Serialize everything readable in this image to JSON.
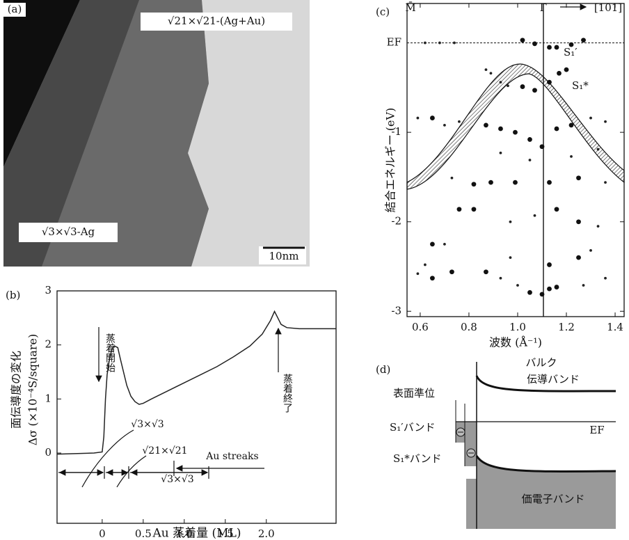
{
  "stm_image": {
    "panel_label": "(a)",
    "labels": [
      "√21×√21-(Ag+Au)",
      "√3×√3-Ag"
    ],
    "scale_bar": "10nm"
  },
  "chart_data": [
    {
      "type": "line",
      "panel_label": "(b)",
      "x_label": "Au 蒸着量 (ML)",
      "y_label": [
        "面伝導度の変化",
        "Δσ (×10⁻⁴S/square)"
      ],
      "xlim": [
        -0.55,
        2.85
      ],
      "xticks": [
        0,
        0.5,
        {
          "value": 1,
          "label": "1.0"
        },
        1.5,
        {
          "value": 2,
          "label": "2.0"
        }
      ],
      "ylim": [
        -1.3,
        3
      ],
      "yticks": [
        0,
        1,
        2,
        3
      ],
      "x": [
        -0.55,
        -0.3,
        -0.1,
        0,
        0.02,
        0.04,
        0.06,
        0.09,
        0.12,
        0.15,
        0.19,
        0.22,
        0.26,
        0.3,
        0.35,
        0.4,
        0.45,
        0.5,
        0.6,
        0.8,
        1.0,
        1.2,
        1.4,
        1.6,
        1.8,
        1.95,
        2.05,
        2.1,
        2.14,
        2.18,
        2.25,
        2.4,
        2.6,
        2.85
      ],
      "series": [
        {
          "color": "#222222",
          "values": [
            -0.02,
            -0.01,
            0,
            0.02,
            0.3,
            1.0,
            1.45,
            1.75,
            1.93,
            1.98,
            1.95,
            1.75,
            1.5,
            1.25,
            1.05,
            0.95,
            0.9,
            0.92,
            1.0,
            1.15,
            1.3,
            1.45,
            1.6,
            1.78,
            1.98,
            2.2,
            2.45,
            2.62,
            2.5,
            2.38,
            2.32,
            2.3,
            2.3,
            2.3
          ]
        }
      ],
      "annotations": [
        "蒸着開始",
        "蒸着終了",
        "√3×√3",
        "√21×√21",
        "Au streaks",
        "√3×√3"
      ]
    },
    {
      "type": "scatter",
      "panel_label": "(c)",
      "x_label": "波数 (Å⁻¹)",
      "y_label": "結合エネルギー (eV)",
      "top_labels": [
        "M̄",
        "Γ̄",
        "[101]"
      ],
      "annotations": [
        "S₁′",
        "S₁*"
      ],
      "xlim": [
        0.546,
        1.437
      ],
      "xticks": [
        0.6,
        0.8,
        {
          "value": 1,
          "label": "1.0"
        },
        1.2,
        1.4
      ],
      "ylim": [
        -3.06,
        0.44
      ],
      "yticks": [
        -3,
        -2,
        -1,
        {
          "value": 0,
          "label": "EF"
        }
      ],
      "series": [
        {
          "color": "#111111",
          "x": [
            1.02,
            1.07,
            1.13,
            1.16,
            1.22,
            1.27,
            1.02,
            1.07,
            1.13,
            1.17,
            1.2,
            0.65,
            0.87,
            0.93,
            0.99,
            1.05,
            1.1,
            1.16,
            1.22,
            0.82,
            0.89,
            0.99,
            1.13,
            1.25,
            0.76,
            0.82,
            1.16,
            1.25,
            0.65,
            0.73,
            0.87,
            1.13,
            1.25,
            0.65,
            1.05,
            1.1,
            1.13,
            1.16
          ],
          "values": [
            0.03,
            -0.01,
            -0.05,
            -0.05,
            -0.02,
            0.03,
            -0.49,
            -0.53,
            -0.44,
            -0.34,
            -0.3,
            -0.84,
            -0.92,
            -0.96,
            -1,
            -1.08,
            -1.16,
            -0.96,
            -0.92,
            -1.58,
            -1.56,
            -1.56,
            -1.56,
            -1.51,
            -1.86,
            -1.86,
            -1.86,
            -2,
            -2.25,
            -2.56,
            -2.56,
            -2.48,
            -2.4,
            -2.63,
            -2.79,
            -2.81,
            -2.75,
            -2.73
          ]
        },
        {
          "color": "#222222",
          "x": [
            0.62,
            0.68,
            0.74,
            0.87,
            0.89,
            0.93,
            0.96,
            0.59,
            0.7,
            0.76,
            1.3,
            1.36,
            0.93,
            1.05,
            1.22,
            1.33,
            0.73,
            1.36,
            0.97,
            1.07,
            1.33,
            0.7,
            0.62,
            0.97,
            1.3,
            0.59,
            0.93,
            1,
            1.27,
            1.36
          ],
          "values": [
            0,
            0,
            0,
            -0.3,
            -0.34,
            -0.44,
            -0.48,
            -0.84,
            -0.92,
            -0.88,
            -0.84,
            -0.88,
            -1.23,
            -1.31,
            -1.27,
            -1.19,
            -1.51,
            -1.56,
            -2,
            -1.93,
            -2.05,
            -2.25,
            -2.48,
            -2.4,
            -2.32,
            -2.58,
            -2.63,
            -2.71,
            -2.71,
            -2.63
          ]
        }
      ]
    }
  ],
  "band_diagram": {
    "panel_label": "(d)",
    "labels": [
      "バルク",
      "伝導バンド",
      "表面準位",
      "S₁′バンド",
      "EF",
      "S₁*バンド",
      "価電子バンド"
    ]
  }
}
